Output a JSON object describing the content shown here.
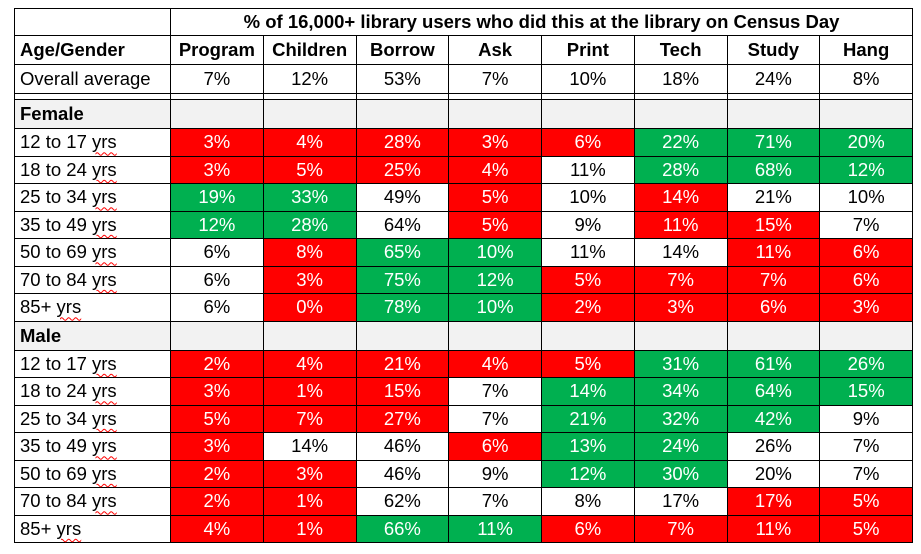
{
  "corner_mark": "",
  "title": "% of 16,000+ library users who did this at the library on Census Day",
  "header": {
    "first": "Age/Gender",
    "columns": [
      "Program",
      "Children",
      "Borrow",
      "Ask",
      "Print",
      "Tech",
      "Study",
      "Hang"
    ]
  },
  "overall": {
    "label": "Overall average",
    "values": [
      "7%",
      "12%",
      "53%",
      "7%",
      "10%",
      "18%",
      "24%",
      "8%"
    ]
  },
  "colors": {
    "red": "#ff0000",
    "green": "#00b050",
    "white": "#ffffff",
    "group_bg": "#f2f2f2"
  },
  "groups": [
    {
      "name": "Female",
      "rows": [
        {
          "age": "12 to 17",
          "unit": "yrs",
          "values": [
            "3%",
            "4%",
            "28%",
            "3%",
            "6%",
            "22%",
            "71%",
            "20%"
          ],
          "fill": [
            "r",
            "r",
            "r",
            "r",
            "r",
            "g",
            "g",
            "g"
          ]
        },
        {
          "age": "18 to 24",
          "unit": "yrs",
          "values": [
            "3%",
            "5%",
            "25%",
            "4%",
            "11%",
            "28%",
            "68%",
            "12%"
          ],
          "fill": [
            "r",
            "r",
            "r",
            "r",
            "w",
            "g",
            "g",
            "g"
          ]
        },
        {
          "age": "25 to 34",
          "unit": "yrs",
          "values": [
            "19%",
            "33%",
            "49%",
            "5%",
            "10%",
            "14%",
            "21%",
            "10%"
          ],
          "fill": [
            "g",
            "g",
            "w",
            "r",
            "w",
            "r",
            "w",
            "w"
          ]
        },
        {
          "age": "35 to 49",
          "unit": "yrs",
          "values": [
            "12%",
            "28%",
            "64%",
            "5%",
            "9%",
            "11%",
            "15%",
            "7%"
          ],
          "fill": [
            "g",
            "g",
            "w",
            "r",
            "w",
            "r",
            "r",
            "w"
          ]
        },
        {
          "age": "50 to 69",
          "unit": "yrs",
          "values": [
            "6%",
            "8%",
            "65%",
            "10%",
            "11%",
            "14%",
            "11%",
            "6%"
          ],
          "fill": [
            "w",
            "r",
            "g",
            "g",
            "w",
            "w",
            "r",
            "r"
          ]
        },
        {
          "age": "70 to 84",
          "unit": "yrs",
          "values": [
            "6%",
            "3%",
            "75%",
            "12%",
            "5%",
            "7%",
            "7%",
            "6%"
          ],
          "fill": [
            "w",
            "r",
            "g",
            "g",
            "r",
            "r",
            "r",
            "r"
          ]
        },
        {
          "age": "85+",
          "unit": "yrs",
          "values": [
            "6%",
            "0%",
            "78%",
            "10%",
            "2%",
            "3%",
            "6%",
            "3%"
          ],
          "fill": [
            "w",
            "r",
            "g",
            "g",
            "r",
            "r",
            "r",
            "r"
          ]
        }
      ]
    },
    {
      "name": "Male",
      "rows": [
        {
          "age": "12 to 17",
          "unit": "yrs",
          "values": [
            "2%",
            "4%",
            "21%",
            "4%",
            "5%",
            "31%",
            "61%",
            "26%"
          ],
          "fill": [
            "r",
            "r",
            "r",
            "r",
            "r",
            "g",
            "g",
            "g"
          ]
        },
        {
          "age": "18 to 24",
          "unit": "yrs",
          "values": [
            "3%",
            "1%",
            "15%",
            "7%",
            "14%",
            "34%",
            "64%",
            "15%"
          ],
          "fill": [
            "r",
            "r",
            "r",
            "w",
            "g",
            "g",
            "g",
            "g"
          ]
        },
        {
          "age": "25 to 34",
          "unit": "yrs",
          "values": [
            "5%",
            "7%",
            "27%",
            "7%",
            "21%",
            "32%",
            "42%",
            "9%"
          ],
          "fill": [
            "r",
            "r",
            "r",
            "w",
            "g",
            "g",
            "g",
            "w"
          ]
        },
        {
          "age": "35 to 49",
          "unit": "yrs",
          "values": [
            "3%",
            "14%",
            "46%",
            "6%",
            "13%",
            "24%",
            "26%",
            "7%"
          ],
          "fill": [
            "r",
            "w",
            "w",
            "r",
            "g",
            "g",
            "w",
            "w"
          ]
        },
        {
          "age": "50 to 69",
          "unit": "yrs",
          "values": [
            "2%",
            "3%",
            "46%",
            "9%",
            "12%",
            "30%",
            "20%",
            "7%"
          ],
          "fill": [
            "r",
            "r",
            "w",
            "w",
            "g",
            "g",
            "w",
            "w"
          ]
        },
        {
          "age": "70 to 84",
          "unit": "yrs",
          "values": [
            "2%",
            "1%",
            "62%",
            "7%",
            "8%",
            "17%",
            "17%",
            "5%"
          ],
          "fill": [
            "r",
            "r",
            "w",
            "w",
            "w",
            "w",
            "r",
            "r"
          ]
        },
        {
          "age": "85+",
          "unit": "yrs",
          "values": [
            "4%",
            "1%",
            "66%",
            "11%",
            "6%",
            "7%",
            "11%",
            "5%"
          ],
          "fill": [
            "r",
            "r",
            "g",
            "g",
            "r",
            "r",
            "r",
            "r"
          ]
        }
      ]
    }
  ]
}
